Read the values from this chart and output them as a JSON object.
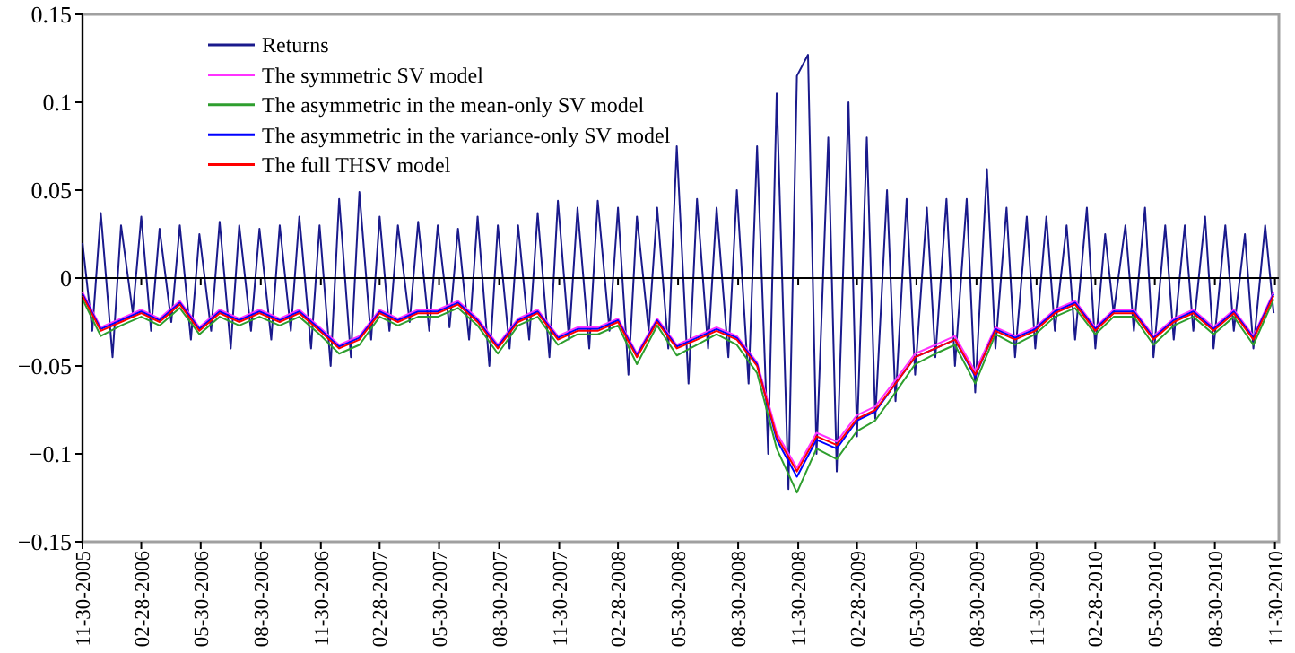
{
  "chart_data": {
    "type": "line",
    "x": [
      "2005-11-30",
      "2005-12-15",
      "2005-12-28",
      "2006-01-15",
      "2006-01-28",
      "2006-02-15",
      "2006-02-28",
      "2006-03-15",
      "2006-03-28",
      "2006-04-15",
      "2006-04-28",
      "2006-05-15",
      "2006-05-28",
      "2006-06-15",
      "2006-06-28",
      "2006-07-15",
      "2006-07-28",
      "2006-08-15",
      "2006-08-28",
      "2006-09-15",
      "2006-09-28",
      "2006-10-15",
      "2006-10-28",
      "2006-11-15",
      "2006-11-28",
      "2006-12-15",
      "2006-12-28",
      "2007-01-15",
      "2007-01-28",
      "2007-02-15",
      "2007-02-28",
      "2007-03-15",
      "2007-03-28",
      "2007-04-15",
      "2007-04-28",
      "2007-05-15",
      "2007-05-28",
      "2007-06-15",
      "2007-06-28",
      "2007-07-15",
      "2007-07-28",
      "2007-08-15",
      "2007-08-28",
      "2007-09-15",
      "2007-09-28",
      "2007-10-15",
      "2007-10-28",
      "2007-11-15",
      "2007-11-28",
      "2007-12-15",
      "2007-12-28",
      "2008-01-15",
      "2008-01-28",
      "2008-02-15",
      "2008-02-28",
      "2008-03-15",
      "2008-03-28",
      "2008-04-15",
      "2008-04-28",
      "2008-05-15",
      "2008-05-28",
      "2008-06-15",
      "2008-06-28",
      "2008-07-15",
      "2008-07-28",
      "2008-08-15",
      "2008-08-28",
      "2008-09-15",
      "2008-09-28",
      "2008-10-15",
      "2008-10-28",
      "2008-11-15",
      "2008-11-28",
      "2008-12-15",
      "2008-12-28",
      "2009-01-15",
      "2009-01-28",
      "2009-02-15",
      "2009-02-28",
      "2009-03-15",
      "2009-03-28",
      "2009-04-15",
      "2009-04-28",
      "2009-05-15",
      "2009-05-28",
      "2009-06-15",
      "2009-06-28",
      "2009-07-15",
      "2009-07-28",
      "2009-08-15",
      "2009-08-28",
      "2009-09-15",
      "2009-09-28",
      "2009-10-15",
      "2009-10-28",
      "2009-11-15",
      "2009-11-28",
      "2009-12-15",
      "2009-12-28",
      "2010-01-15",
      "2010-01-28",
      "2010-02-15",
      "2010-02-28",
      "2010-03-15",
      "2010-03-28",
      "2010-04-15",
      "2010-04-28",
      "2010-05-15",
      "2010-05-28",
      "2010-06-15",
      "2010-06-28",
      "2010-07-15",
      "2010-07-28",
      "2010-08-15",
      "2010-08-28",
      "2010-09-15",
      "2010-09-28",
      "2010-10-15",
      "2010-10-28",
      "2010-11-15",
      "2010-11-28"
    ],
    "series": [
      {
        "name": "Returns",
        "color": "#1a1a8c",
        "values": [
          0.02,
          -0.03,
          0.037,
          -0.045,
          0.03,
          -0.02,
          0.035,
          -0.03,
          0.028,
          -0.025,
          0.03,
          -0.035,
          0.025,
          -0.03,
          0.032,
          -0.04,
          0.03,
          -0.03,
          0.028,
          -0.035,
          0.03,
          -0.03,
          0.035,
          -0.04,
          0.03,
          -0.05,
          0.045,
          -0.045,
          0.049,
          -0.035,
          0.035,
          -0.03,
          0.03,
          -0.025,
          0.032,
          -0.03,
          0.03,
          -0.028,
          0.028,
          -0.035,
          0.035,
          -0.05,
          0.03,
          -0.04,
          0.03,
          -0.035,
          0.037,
          -0.045,
          0.044,
          -0.035,
          0.04,
          -0.04,
          0.044,
          -0.03,
          0.04,
          -0.055,
          0.035,
          -0.03,
          0.04,
          -0.04,
          0.075,
          -0.06,
          0.045,
          -0.04,
          0.04,
          -0.045,
          0.05,
          -0.06,
          0.075,
          -0.1,
          0.105,
          -0.12,
          0.115,
          0.127,
          -0.1,
          0.08,
          -0.11,
          0.1,
          -0.09,
          0.08,
          -0.08,
          0.05,
          -0.07,
          0.045,
          -0.055,
          0.04,
          -0.045,
          0.045,
          -0.05,
          0.045,
          -0.065,
          0.062,
          -0.04,
          0.04,
          -0.045,
          0.035,
          -0.04,
          0.035,
          -0.03,
          0.03,
          -0.035,
          0.04,
          -0.04,
          0.025,
          -0.02,
          0.03,
          -0.03,
          0.04,
          -0.045,
          0.03,
          -0.035,
          0.03,
          -0.03,
          0.035,
          -0.04,
          0.03,
          -0.03,
          0.025,
          -0.04,
          0.03,
          -0.02
        ]
      },
      {
        "name": "The symmetric SV model",
        "color": "#ff33ff",
        "x": [
          "2005-11-30",
          "2005-12-28",
          "2006-01-28",
          "2006-02-28",
          "2006-03-28",
          "2006-04-28",
          "2006-05-28",
          "2006-06-28",
          "2006-07-28",
          "2006-08-28",
          "2006-09-28",
          "2006-10-28",
          "2006-11-28",
          "2006-12-28",
          "2007-01-28",
          "2007-02-28",
          "2007-03-28",
          "2007-04-28",
          "2007-05-28",
          "2007-06-28",
          "2007-07-28",
          "2007-08-28",
          "2007-09-28",
          "2007-10-28",
          "2007-11-28",
          "2007-12-28",
          "2008-01-28",
          "2008-02-28",
          "2008-03-28",
          "2008-04-28",
          "2008-05-28",
          "2008-06-28",
          "2008-07-28",
          "2008-08-28",
          "2008-09-28",
          "2008-10-28",
          "2008-11-28",
          "2008-12-28",
          "2009-01-28",
          "2009-02-28",
          "2009-03-28",
          "2009-04-28",
          "2009-05-28",
          "2009-06-28",
          "2009-07-28",
          "2009-08-28",
          "2009-09-28",
          "2009-10-28",
          "2009-11-28",
          "2009-12-28",
          "2010-01-28",
          "2010-02-28",
          "2010-03-28",
          "2010-04-28",
          "2010-05-28",
          "2010-06-28",
          "2010-07-28",
          "2010-08-28",
          "2010-09-28",
          "2010-10-28",
          "2010-11-28"
        ],
        "values": [
          -0.008,
          -0.028,
          -0.023,
          -0.018,
          -0.023,
          -0.013,
          -0.028,
          -0.018,
          -0.023,
          -0.018,
          -0.023,
          -0.018,
          -0.028,
          -0.038,
          -0.033,
          -0.018,
          -0.023,
          -0.018,
          -0.018,
          -0.013,
          -0.023,
          -0.038,
          -0.023,
          -0.018,
          -0.033,
          -0.028,
          -0.028,
          -0.023,
          -0.043,
          -0.023,
          -0.038,
          -0.033,
          -0.028,
          -0.033,
          -0.048,
          -0.088,
          -0.108,
          -0.088,
          -0.093,
          -0.078,
          -0.073,
          -0.058,
          -0.043,
          -0.038,
          -0.033,
          -0.053,
          -0.028,
          -0.033,
          -0.028,
          -0.018,
          -0.013,
          -0.028,
          -0.018,
          -0.018,
          -0.033,
          -0.023,
          -0.018,
          -0.028,
          -0.018,
          -0.033,
          -0.008
        ]
      },
      {
        "name": "The asymmetric in the mean-only SV model",
        "color": "#2e9e2e",
        "x": [
          "2005-11-30",
          "2005-12-28",
          "2006-01-28",
          "2006-02-28",
          "2006-03-28",
          "2006-04-28",
          "2006-05-28",
          "2006-06-28",
          "2006-07-28",
          "2006-08-28",
          "2006-09-28",
          "2006-10-28",
          "2006-11-28",
          "2006-12-28",
          "2007-01-28",
          "2007-02-28",
          "2007-03-28",
          "2007-04-28",
          "2007-05-28",
          "2007-06-28",
          "2007-07-28",
          "2007-08-28",
          "2007-09-28",
          "2007-10-28",
          "2007-11-28",
          "2007-12-28",
          "2008-01-28",
          "2008-02-28",
          "2008-03-28",
          "2008-04-28",
          "2008-05-28",
          "2008-06-28",
          "2008-07-28",
          "2008-08-28",
          "2008-09-28",
          "2008-10-28",
          "2008-11-28",
          "2008-12-28",
          "2009-01-28",
          "2009-02-28",
          "2009-03-28",
          "2009-04-28",
          "2009-05-28",
          "2009-06-28",
          "2009-07-28",
          "2009-08-28",
          "2009-09-28",
          "2009-10-28",
          "2009-11-28",
          "2009-12-28",
          "2010-01-28",
          "2010-02-28",
          "2010-03-28",
          "2010-04-28",
          "2010-05-28",
          "2010-06-28",
          "2010-07-28",
          "2010-08-28",
          "2010-09-28",
          "2010-10-28",
          "2010-11-28"
        ],
        "values": [
          -0.012,
          -0.033,
          -0.027,
          -0.022,
          -0.027,
          -0.017,
          -0.032,
          -0.022,
          -0.027,
          -0.022,
          -0.027,
          -0.022,
          -0.032,
          -0.043,
          -0.038,
          -0.022,
          -0.027,
          -0.022,
          -0.022,
          -0.017,
          -0.027,
          -0.043,
          -0.027,
          -0.022,
          -0.038,
          -0.032,
          -0.032,
          -0.027,
          -0.049,
          -0.027,
          -0.044,
          -0.038,
          -0.032,
          -0.038,
          -0.054,
          -0.097,
          -0.122,
          -0.097,
          -0.103,
          -0.087,
          -0.081,
          -0.065,
          -0.049,
          -0.043,
          -0.038,
          -0.06,
          -0.032,
          -0.038,
          -0.032,
          -0.022,
          -0.017,
          -0.032,
          -0.022,
          -0.022,
          -0.038,
          -0.027,
          -0.022,
          -0.032,
          -0.022,
          -0.038,
          -0.012
        ]
      },
      {
        "name": "The asymmetric in the variance-only SV model",
        "color": "#0000ff",
        "x": [
          "2005-11-30",
          "2005-12-28",
          "2006-01-28",
          "2006-02-28",
          "2006-03-28",
          "2006-04-28",
          "2006-05-28",
          "2006-06-28",
          "2006-07-28",
          "2006-08-28",
          "2006-09-28",
          "2006-10-28",
          "2006-11-28",
          "2006-12-28",
          "2007-01-28",
          "2007-02-28",
          "2007-03-28",
          "2007-04-28",
          "2007-05-28",
          "2007-06-28",
          "2007-07-28",
          "2007-08-28",
          "2007-09-28",
          "2007-10-28",
          "2007-11-28",
          "2007-12-28",
          "2008-01-28",
          "2008-02-28",
          "2008-03-28",
          "2008-04-28",
          "2008-05-28",
          "2008-06-28",
          "2008-07-28",
          "2008-08-28",
          "2008-09-28",
          "2008-10-28",
          "2008-11-28",
          "2008-12-28",
          "2009-01-28",
          "2009-02-28",
          "2009-03-28",
          "2009-04-28",
          "2009-05-28",
          "2009-06-28",
          "2009-07-28",
          "2009-08-28",
          "2009-09-28",
          "2009-10-28",
          "2009-11-28",
          "2009-12-28",
          "2010-01-28",
          "2010-02-28",
          "2010-03-28",
          "2010-04-28",
          "2010-05-28",
          "2010-06-28",
          "2010-07-28",
          "2010-08-28",
          "2010-09-28",
          "2010-10-28",
          "2010-11-28"
        ],
        "values": [
          -0.009,
          -0.029,
          -0.024,
          -0.019,
          -0.024,
          -0.014,
          -0.029,
          -0.019,
          -0.024,
          -0.019,
          -0.024,
          -0.019,
          -0.029,
          -0.039,
          -0.034,
          -0.019,
          -0.024,
          -0.019,
          -0.019,
          -0.014,
          -0.024,
          -0.039,
          -0.024,
          -0.019,
          -0.034,
          -0.029,
          -0.029,
          -0.024,
          -0.044,
          -0.024,
          -0.039,
          -0.034,
          -0.029,
          -0.034,
          -0.049,
          -0.092,
          -0.113,
          -0.092,
          -0.097,
          -0.081,
          -0.076,
          -0.06,
          -0.045,
          -0.04,
          -0.035,
          -0.056,
          -0.029,
          -0.034,
          -0.029,
          -0.019,
          -0.014,
          -0.029,
          -0.019,
          -0.019,
          -0.034,
          -0.024,
          -0.019,
          -0.029,
          -0.019,
          -0.034,
          -0.009
        ]
      },
      {
        "name": "The full THSV model",
        "color": "#ff0000",
        "x": [
          "2005-11-30",
          "2005-12-28",
          "2006-01-28",
          "2006-02-28",
          "2006-03-28",
          "2006-04-28",
          "2006-05-28",
          "2006-06-28",
          "2006-07-28",
          "2006-08-28",
          "2006-09-28",
          "2006-10-28",
          "2006-11-28",
          "2006-12-28",
          "2007-01-28",
          "2007-02-28",
          "2007-03-28",
          "2007-04-28",
          "2007-05-28",
          "2007-06-28",
          "2007-07-28",
          "2007-08-28",
          "2007-09-28",
          "2007-10-28",
          "2007-11-28",
          "2007-12-28",
          "2008-01-28",
          "2008-02-28",
          "2008-03-28",
          "2008-04-28",
          "2008-05-28",
          "2008-06-28",
          "2008-07-28",
          "2008-08-28",
          "2008-09-28",
          "2008-10-28",
          "2008-11-28",
          "2008-12-28",
          "2009-01-28",
          "2009-02-28",
          "2009-03-28",
          "2009-04-28",
          "2009-05-28",
          "2009-06-28",
          "2009-07-28",
          "2009-08-28",
          "2009-09-28",
          "2009-10-28",
          "2009-11-28",
          "2009-12-28",
          "2010-01-28",
          "2010-02-28",
          "2010-03-28",
          "2010-04-28",
          "2010-05-28",
          "2010-06-28",
          "2010-07-28",
          "2010-08-28",
          "2010-09-28",
          "2010-10-28",
          "2010-11-28"
        ],
        "values": [
          -0.01,
          -0.03,
          -0.025,
          -0.02,
          -0.025,
          -0.015,
          -0.03,
          -0.02,
          -0.025,
          -0.02,
          -0.025,
          -0.02,
          -0.03,
          -0.04,
          -0.035,
          -0.02,
          -0.025,
          -0.02,
          -0.02,
          -0.015,
          -0.025,
          -0.04,
          -0.025,
          -0.02,
          -0.035,
          -0.03,
          -0.03,
          -0.025,
          -0.045,
          -0.025,
          -0.04,
          -0.035,
          -0.03,
          -0.035,
          -0.05,
          -0.09,
          -0.11,
          -0.09,
          -0.095,
          -0.08,
          -0.075,
          -0.06,
          -0.045,
          -0.04,
          -0.035,
          -0.055,
          -0.03,
          -0.035,
          -0.03,
          -0.02,
          -0.015,
          -0.03,
          -0.02,
          -0.02,
          -0.035,
          -0.025,
          -0.02,
          -0.03,
          -0.02,
          -0.035,
          -0.01
        ]
      }
    ],
    "xlim": [
      "2005-11-30",
      "2010-12-06"
    ],
    "xticks": [
      {
        "value": "2005-11-30",
        "label": "11-30-2005"
      },
      {
        "value": "2006-02-28",
        "label": "02-28-2006"
      },
      {
        "value": "2006-05-30",
        "label": "05-30-2006"
      },
      {
        "value": "2006-08-30",
        "label": "08-30-2006"
      },
      {
        "value": "2006-11-30",
        "label": "11-30-2006"
      },
      {
        "value": "2007-02-28",
        "label": "02-28-2007"
      },
      {
        "value": "2007-05-30",
        "label": "05-30-2007"
      },
      {
        "value": "2007-08-30",
        "label": "08-30-2007"
      },
      {
        "value": "2007-11-30",
        "label": "11-30-2007"
      },
      {
        "value": "2008-02-28",
        "label": "02-28-2008"
      },
      {
        "value": "2008-05-30",
        "label": "05-30-2008"
      },
      {
        "value": "2008-08-30",
        "label": "08-30-2008"
      },
      {
        "value": "2008-11-30",
        "label": "11-30-2008"
      },
      {
        "value": "2009-02-28",
        "label": "02-28-2009"
      },
      {
        "value": "2009-05-30",
        "label": "05-30-2009"
      },
      {
        "value": "2009-08-30",
        "label": "08-30-2009"
      },
      {
        "value": "2009-11-30",
        "label": "11-30-2009"
      },
      {
        "value": "2010-02-28",
        "label": "02-28-2010"
      },
      {
        "value": "2010-05-30",
        "label": "05-30-2010"
      },
      {
        "value": "2010-08-30",
        "label": "08-30-2010"
      },
      {
        "value": "2010-11-30",
        "label": "11-30-2010"
      }
    ],
    "ylim": [
      -0.15,
      0.15
    ],
    "yticks": [
      -0.15,
      -0.1,
      -0.05,
      0,
      0.05,
      0.1,
      0.15
    ],
    "legend": "top left",
    "marker": "none",
    "line_style": "solid"
  }
}
